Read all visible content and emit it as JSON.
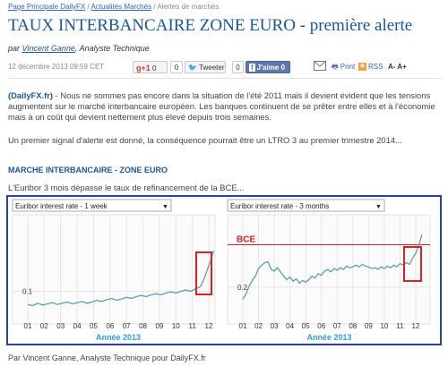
{
  "breadcrumb": {
    "item1": "Page Principale DailyFX",
    "sep1": " / ",
    "item2": "Actualités Marchés",
    "sep2": " / ",
    "item3": "Alertes de marchés"
  },
  "article": {
    "title": "TAUX INTERBANCAIRE ZONE EURO - première alerte",
    "by": "par",
    "author": "Vincent Ganne",
    "author_role": ", Analyste Technique",
    "date": "12 décembre 2013 09:59 CET"
  },
  "toolbar": {
    "gplus_label": "g+1",
    "gplus_count": "0",
    "tweet_count": "0",
    "tweet_label": "Tweeter",
    "fb_count": "0",
    "like_f": "f",
    "like_label": "J'aime",
    "like_count": "0",
    "print_label": "Print",
    "rss_label": "RSS",
    "font_size": "A- A+"
  },
  "body": {
    "p1_source": "(DailyFX.fr)",
    "p1_text": " - Nous ne sommes pas encore dans la situation de l'été 2011 mais il devient évident que les tensions augmentent sur le marché interbancaire européen. Les banques continuent de se prêter entre elles et à l'économie mais à un coût qui devient nettement plus élevé depuis trois semaines.",
    "p2": "Un premier signal d'alerte est donné, la conséquence pourrait être un LTRO 3 au premier trimestre 2014...",
    "section_title": "MARCHE INTERBANCAIRE - ZONE EURO",
    "chart_caption": "L'Euribor 3 mois dépasse le taux de refinancement de la BCE...",
    "footer": "Par Vincent Ganne, Analyste Technique pour DailyFX.fr"
  },
  "colors": {
    "line": "#5aa0a8",
    "highlight": "#e02020",
    "bce": "#cc2020",
    "frame": "#2840a8",
    "year": "#3399dd"
  },
  "chart_data": [
    {
      "type": "line",
      "dropdown": "Euribor interest rate - 1 week",
      "xlabel": "Année 2013",
      "x_ticks": [
        "01",
        "02",
        "03",
        "04",
        "05",
        "06",
        "07",
        "08",
        "09",
        "10",
        "11",
        "12"
      ],
      "y_ticks": [
        {
          "value": 0.1,
          "label": "0.1"
        }
      ],
      "ylim": [
        0.05,
        0.22
      ],
      "x": [
        1.0,
        1.3,
        1.6,
        1.9,
        2.2,
        2.5,
        2.8,
        3.1,
        3.4,
        3.7,
        4.0,
        4.3,
        4.6,
        4.9,
        5.2,
        5.5,
        5.8,
        6.1,
        6.4,
        6.7,
        7.0,
        7.3,
        7.6,
        7.9,
        8.2,
        8.5,
        8.8,
        9.1,
        9.4,
        9.7,
        10.0,
        10.3,
        10.6,
        10.9,
        11.2,
        11.5,
        11.7,
        11.9,
        12.1,
        12.3
      ],
      "y": [
        0.078,
        0.076,
        0.08,
        0.077,
        0.079,
        0.081,
        0.078,
        0.08,
        0.082,
        0.079,
        0.081,
        0.083,
        0.08,
        0.082,
        0.085,
        0.083,
        0.086,
        0.088,
        0.085,
        0.087,
        0.09,
        0.088,
        0.091,
        0.093,
        0.091,
        0.094,
        0.096,
        0.094,
        0.097,
        0.099,
        0.097,
        0.1,
        0.102,
        0.1,
        0.104,
        0.108,
        0.12,
        0.135,
        0.15,
        0.168
      ]
    },
    {
      "type": "line",
      "dropdown": "Euribor interest rate - 3 months",
      "xlabel": "Année 2013",
      "x_ticks": [
        "01",
        "02",
        "03",
        "04",
        "05",
        "06",
        "07",
        "08",
        "09",
        "10",
        "11",
        "12"
      ],
      "y_ticks": [
        {
          "value": 0.2,
          "label": "0.2"
        }
      ],
      "ylim": [
        0.16,
        0.28
      ],
      "reference_line": {
        "label": "BCE",
        "value": 0.25
      },
      "x": [
        1.0,
        1.2,
        1.4,
        1.6,
        1.8,
        2.0,
        2.2,
        2.4,
        2.6,
        2.8,
        3.0,
        3.2,
        3.4,
        3.6,
        3.8,
        4.0,
        4.2,
        4.4,
        4.6,
        4.8,
        5.0,
        5.2,
        5.4,
        5.6,
        5.8,
        6.0,
        6.2,
        6.4,
        6.6,
        6.8,
        7.0,
        7.2,
        7.4,
        7.6,
        7.8,
        8.0,
        8.2,
        8.4,
        8.6,
        8.8,
        9.0,
        9.2,
        9.4,
        9.6,
        9.8,
        10.0,
        10.2,
        10.4,
        10.6,
        10.8,
        11.0,
        11.2,
        11.4,
        11.6,
        11.8,
        12.0,
        12.2,
        12.4
      ],
      "y": [
        0.186,
        0.192,
        0.201,
        0.208,
        0.213,
        0.222,
        0.226,
        0.229,
        0.23,
        0.221,
        0.219,
        0.223,
        0.218,
        0.213,
        0.209,
        0.212,
        0.207,
        0.21,
        0.205,
        0.208,
        0.206,
        0.209,
        0.213,
        0.211,
        0.216,
        0.214,
        0.219,
        0.221,
        0.218,
        0.222,
        0.22,
        0.223,
        0.221,
        0.225,
        0.223,
        0.224,
        0.226,
        0.224,
        0.227,
        0.225,
        0.224,
        0.222,
        0.223,
        0.221,
        0.224,
        0.222,
        0.225,
        0.223,
        0.226,
        0.224,
        0.228,
        0.226,
        0.229,
        0.227,
        0.234,
        0.24,
        0.25,
        0.262
      ]
    }
  ]
}
